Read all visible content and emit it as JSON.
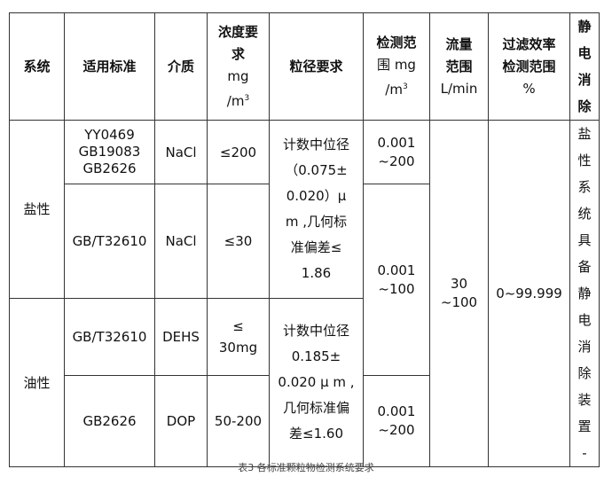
{
  "table": {
    "headers": [
      "系统",
      "适用标准",
      "介质",
      "浓度要求 mg /m³",
      "粒径要求",
      "检测范围 mg /m³",
      "流量范围 L/min",
      "过滤效率检测范围 %",
      "静电消除"
    ],
    "header_parts": {
      "conc_a": "浓度要",
      "conc_b": "求",
      "conc_c": "mg",
      "conc_d": "/m",
      "sup": "3",
      "range_a": "检测范",
      "range_b": "围 mg",
      "range_c": "/m",
      "flow_a": "流量",
      "flow_b": "范围",
      "flow_c": "L/min",
      "eff_a": "过滤效率",
      "eff_b": "检测范围",
      "eff_c": "%",
      "static": [
        "静",
        "电",
        "消",
        "除"
      ]
    },
    "groups": {
      "salt": "盐性",
      "oil": "油性"
    },
    "rows": [
      {
        "standard": [
          "YY0469",
          "GB19083",
          "GB2626"
        ],
        "medium": "NaCl",
        "conc": "≤200",
        "range": "0.001 ~200"
      },
      {
        "standard": [
          "GB/T32610"
        ],
        "medium": "NaCl",
        "conc": "≤30",
        "range": "0.001 ~100"
      },
      {
        "standard": [
          "GB/T32610"
        ],
        "medium": "DEHS",
        "conc": "≤ 30mg"
      },
      {
        "standard": [
          "GB2626"
        ],
        "medium": "DOP",
        "conc": "50-200",
        "range": "0.001 ~200"
      }
    ],
    "range_parts": {
      "a1": "0.001",
      "a2": "~200",
      "b1": "0.001",
      "b2": "~100",
      "c1": "0.001",
      "c2": "~200"
    },
    "conc_parts": {
      "dehs1": "≤",
      "dehs2": "30mg"
    },
    "particle_salt": [
      "计数中位径",
      "（0.075±",
      "0.020）μ",
      "m ,几何标",
      "准偏差≤",
      "1.86"
    ],
    "particle_oil": [
      "计数中位径",
      "0.185±",
      "0.020 μ m ,",
      "几何标准偏",
      "差≤1.60"
    ],
    "flow": [
      "30",
      "~100"
    ],
    "efficiency": "0~99.999",
    "static_note": [
      "盐",
      "性",
      "系",
      "统",
      "具",
      "备",
      "静",
      "电",
      "消",
      "除",
      "装",
      "置",
      "-"
    ]
  },
  "caption": "表3 各标准颗粒物检测系统要求"
}
